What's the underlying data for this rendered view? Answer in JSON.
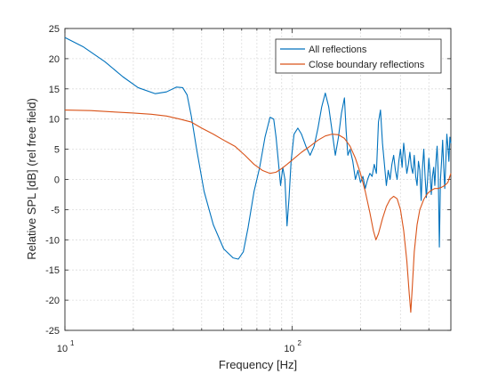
{
  "chart_data": {
    "type": "line",
    "xscale": "log",
    "xlim": [
      10,
      500
    ],
    "ylim": [
      -25,
      25
    ],
    "grid": true,
    "xlabel": "Frequency [Hz]",
    "ylabel": "Relative SPL [dB] (rel free field)",
    "yticks": [
      -25,
      -20,
      -15,
      -10,
      -5,
      0,
      5,
      10,
      15,
      20,
      25
    ],
    "xticks": [
      10,
      100
    ],
    "xtick_labels": [
      {
        "base": "10",
        "exp": "1"
      },
      {
        "base": "10",
        "exp": "2"
      }
    ],
    "legend": {
      "location": "top-right",
      "entries": [
        "All reflections",
        "Close boundary reflections"
      ]
    },
    "colors": {
      "All reflections": "#0072BD",
      "Close boundary reflections": "#D95319",
      "grid": "#dcdcdc",
      "axes": "#262626"
    },
    "series": [
      {
        "name": "All reflections",
        "x": [
          10,
          12,
          15,
          18,
          21,
          25,
          28,
          31,
          33,
          34.5,
          36,
          38,
          41,
          45,
          50,
          55,
          58,
          61,
          64,
          68,
          72,
          76,
          80,
          83,
          85,
          87,
          89,
          91,
          93,
          95,
          97,
          99,
          102,
          106,
          110,
          115,
          120,
          125,
          130,
          135,
          140,
          145,
          150,
          155,
          160,
          165,
          170,
          173,
          176,
          180,
          185,
          190,
          195,
          200,
          205,
          210,
          215,
          220,
          225,
          230,
          235,
          240,
          245,
          250,
          255,
          260,
          265,
          270,
          275,
          280,
          285,
          290,
          295,
          300,
          305,
          310,
          315,
          320,
          325,
          330,
          335,
          340,
          345,
          350,
          355,
          360,
          365,
          370,
          375,
          380,
          385,
          390,
          395,
          400,
          405,
          410,
          415,
          420,
          425,
          430,
          435,
          440,
          445,
          450,
          455,
          460,
          465,
          470,
          475,
          480,
          485,
          490,
          495,
          500
        ],
        "y": [
          23.5,
          22,
          19.5,
          17,
          15.2,
          14.2,
          14.5,
          15.3,
          15.2,
          14,
          10.5,
          5,
          -2,
          -7.5,
          -11.5,
          -13,
          -13.2,
          -12,
          -8,
          -2,
          2,
          7,
          10.3,
          10,
          7,
          3,
          -1,
          2,
          0,
          -7.7,
          -3,
          3,
          7.5,
          8.5,
          7.5,
          5.5,
          4,
          5.5,
          8.5,
          12,
          14.3,
          12,
          8,
          4,
          7,
          11,
          13.5,
          8,
          4,
          5,
          3,
          0,
          1.5,
          -0.5,
          0.5,
          -1.5,
          0,
          1,
          0.5,
          2.5,
          1,
          9.5,
          11.5,
          6,
          2.5,
          -1,
          1.5,
          0,
          2.5,
          4,
          1.5,
          0,
          3,
          5,
          2,
          6,
          3.5,
          1,
          2.5,
          4.5,
          2,
          1,
          4,
          0.5,
          -1,
          3,
          1.5,
          -3.5,
          2,
          5,
          0.5,
          -3,
          0,
          3.5,
          1,
          -2.5,
          0.5,
          2,
          -1,
          3,
          5.5,
          1,
          -11.2,
          0,
          3,
          6.5,
          2,
          -1.5,
          3,
          7.5,
          5.5,
          3,
          7,
          6
        ]
      },
      {
        "name": "Close boundary reflections",
        "x": [
          10,
          13,
          16,
          20,
          24,
          28,
          32,
          36,
          40,
          45,
          50,
          56,
          62,
          68,
          74,
          80,
          85,
          90,
          95,
          100,
          110,
          120,
          130,
          140,
          150,
          160,
          170,
          180,
          190,
          200,
          210,
          220,
          228,
          234,
          240,
          250,
          260,
          270,
          280,
          290,
          300,
          310,
          320,
          328,
          333,
          338,
          345,
          355,
          365,
          380,
          395,
          410,
          425,
          440,
          455,
          470,
          485,
          500
        ],
        "y": [
          11.5,
          11.4,
          11.2,
          11,
          10.8,
          10.5,
          10,
          9.5,
          8.5,
          7.5,
          6.5,
          5.5,
          4,
          2.5,
          1.5,
          1,
          1.2,
          1.8,
          2.5,
          3.2,
          4.5,
          5.5,
          6.5,
          7.2,
          7.5,
          7.4,
          6.8,
          5.5,
          3.5,
          1,
          -2,
          -5.5,
          -8.5,
          -10,
          -9,
          -6.5,
          -4.5,
          -3.3,
          -2.8,
          -3.2,
          -5,
          -8.5,
          -13.5,
          -19,
          -22,
          -18,
          -12,
          -7.5,
          -5,
          -3.3,
          -2.3,
          -1.8,
          -1.5,
          -1.5,
          -1.3,
          -1,
          -0.5,
          1
        ]
      }
    ]
  }
}
